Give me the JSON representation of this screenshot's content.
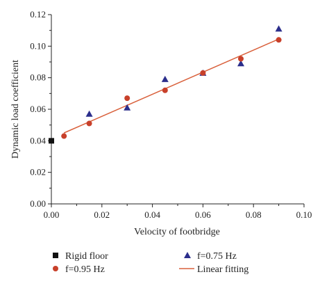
{
  "chart_data": {
    "type": "scatter",
    "xlabel": "Velocity of footbridge",
    "ylabel": "Dynamic load coefficient",
    "xlim": [
      0.0,
      0.1
    ],
    "ylim": [
      0.0,
      0.12
    ],
    "x_ticks": [
      "0.00",
      "0.02",
      "0.04",
      "0.06",
      "0.08",
      "0.10"
    ],
    "y_ticks": [
      "0.00",
      "0.02",
      "0.04",
      "0.06",
      "0.08",
      "0.10",
      "0.12"
    ],
    "grid": false,
    "legend_position": "bottom",
    "series": [
      {
        "name": "Rigid floor",
        "marker": "square",
        "color": "#111111",
        "points": [
          [
            0.0,
            0.04
          ]
        ]
      },
      {
        "name": "f=0.75 Hz",
        "marker": "triangle",
        "color": "#2b2e8c",
        "points": [
          [
            0.015,
            0.057
          ],
          [
            0.03,
            0.061
          ],
          [
            0.045,
            0.079
          ],
          [
            0.06,
            0.083
          ],
          [
            0.075,
            0.089
          ],
          [
            0.09,
            0.111
          ]
        ]
      },
      {
        "name": "f=0.95 Hz",
        "marker": "circle",
        "color": "#c8402a",
        "points": [
          [
            0.005,
            0.043
          ],
          [
            0.015,
            0.051
          ],
          [
            0.03,
            0.067
          ],
          [
            0.045,
            0.072
          ],
          [
            0.06,
            0.083
          ],
          [
            0.075,
            0.092
          ],
          [
            0.09,
            0.104
          ]
        ]
      },
      {
        "name": "Linear fitting",
        "marker": "line",
        "color": "#d9603b",
        "points": [
          [
            0.005,
            0.045
          ],
          [
            0.09,
            0.1045
          ]
        ]
      }
    ]
  }
}
